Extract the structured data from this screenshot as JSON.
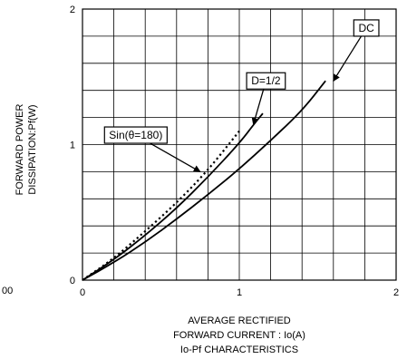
{
  "chart_data": {
    "type": "line",
    "title": "",
    "caption": "Io-Pf CHARACTERISTICS",
    "xlabel_line1": "AVERAGE RECTIFIED",
    "xlabel_line2": "FORWARD CURRENT : Io(A)",
    "ylabel_line1": "FORWARD POWER",
    "ylabel_line2": "DISSIPATION:Pf(W)",
    "xlim": [
      0,
      2
    ],
    "ylim": [
      0,
      2
    ],
    "x_tick_labels": [
      "0",
      "1",
      "2"
    ],
    "y_tick_labels": [
      "0",
      "1",
      "2"
    ],
    "grid": true,
    "stray_text": "00",
    "series": [
      {
        "name": "DC",
        "style": "solid",
        "points": [
          [
            0,
            0
          ],
          [
            0.2,
            0.13
          ],
          [
            0.4,
            0.28
          ],
          [
            0.6,
            0.45
          ],
          [
            0.8,
            0.63
          ],
          [
            1.0,
            0.82
          ],
          [
            1.2,
            1.03
          ],
          [
            1.4,
            1.25
          ],
          [
            1.55,
            1.47
          ]
        ]
      },
      {
        "name": "D=1/2",
        "style": "solid",
        "points": [
          [
            0,
            0
          ],
          [
            0.2,
            0.15
          ],
          [
            0.4,
            0.33
          ],
          [
            0.6,
            0.53
          ],
          [
            0.8,
            0.76
          ],
          [
            1.0,
            1.01
          ],
          [
            1.1,
            1.16
          ],
          [
            1.15,
            1.23
          ]
        ]
      },
      {
        "name": "Sin(θ=180)",
        "style": "dotted",
        "points": [
          [
            0,
            0
          ],
          [
            0.2,
            0.16
          ],
          [
            0.4,
            0.36
          ],
          [
            0.6,
            0.57
          ],
          [
            0.8,
            0.81
          ],
          [
            1.0,
            1.1
          ]
        ]
      }
    ],
    "annotations": [
      {
        "text": "DC",
        "box_at": [
          1.81,
          1.86
        ],
        "arrow_to": [
          1.6,
          1.47
        ]
      },
      {
        "text": "D=1/2",
        "box_at": [
          1.17,
          1.47
        ],
        "arrow_to": [
          1.09,
          1.15
        ]
      },
      {
        "text": "Sin(θ=180)",
        "box_at": [
          0.34,
          1.07
        ],
        "arrow_to": [
          0.75,
          0.8
        ]
      }
    ]
  }
}
